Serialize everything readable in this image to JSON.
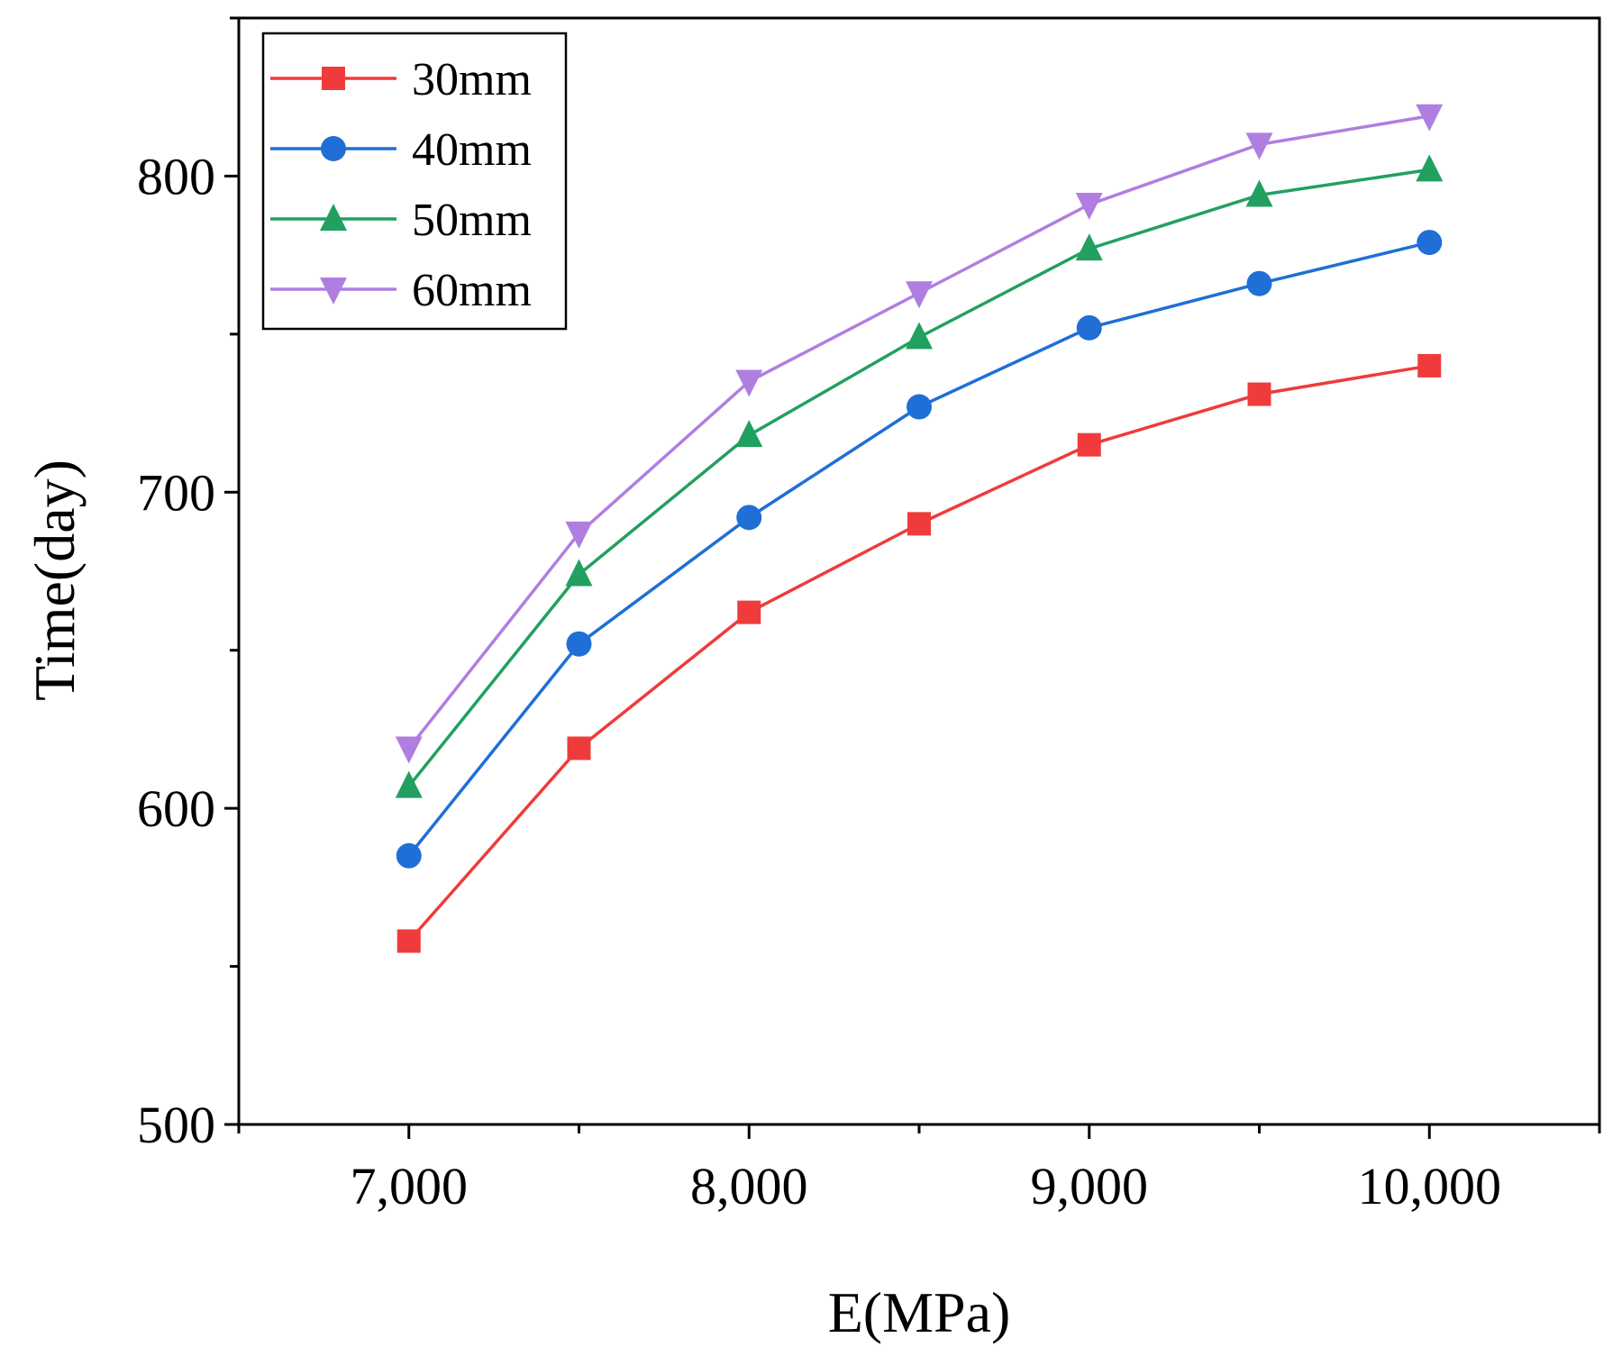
{
  "chart_data": {
    "type": "line",
    "title": "",
    "xlabel": "E(MPa)",
    "ylabel": "Time(day)",
    "xlim": [
      6500,
      10500
    ],
    "ylim": [
      500,
      850
    ],
    "x": [
      7000,
      7500,
      8000,
      8500,
      9000,
      9500,
      10000
    ],
    "x_ticks": [
      7000,
      8000,
      9000,
      10000
    ],
    "x_tick_labels": [
      "7,000",
      "8,000",
      "9,000",
      "10,000"
    ],
    "y_ticks": [
      500,
      600,
      700,
      800
    ],
    "y_tick_labels": [
      "500",
      "600",
      "700",
      "800"
    ],
    "grid": false,
    "legend_position": "top-left",
    "series": [
      {
        "name": "30mm",
        "color": "#ef3b3b",
        "marker": "square",
        "values": [
          558,
          619,
          662,
          690,
          715,
          731,
          740
        ]
      },
      {
        "name": "40mm",
        "color": "#1f6fd6",
        "marker": "circle",
        "values": [
          585,
          652,
          692,
          727,
          752,
          766,
          779
        ]
      },
      {
        "name": "50mm",
        "color": "#22a060",
        "marker": "triangle-up",
        "values": [
          607,
          674,
          718,
          749,
          777,
          794,
          802
        ]
      },
      {
        "name": "60mm",
        "color": "#b07ee0",
        "marker": "triangle-down",
        "values": [
          619,
          687,
          735,
          763,
          791,
          810,
          819
        ]
      }
    ]
  }
}
